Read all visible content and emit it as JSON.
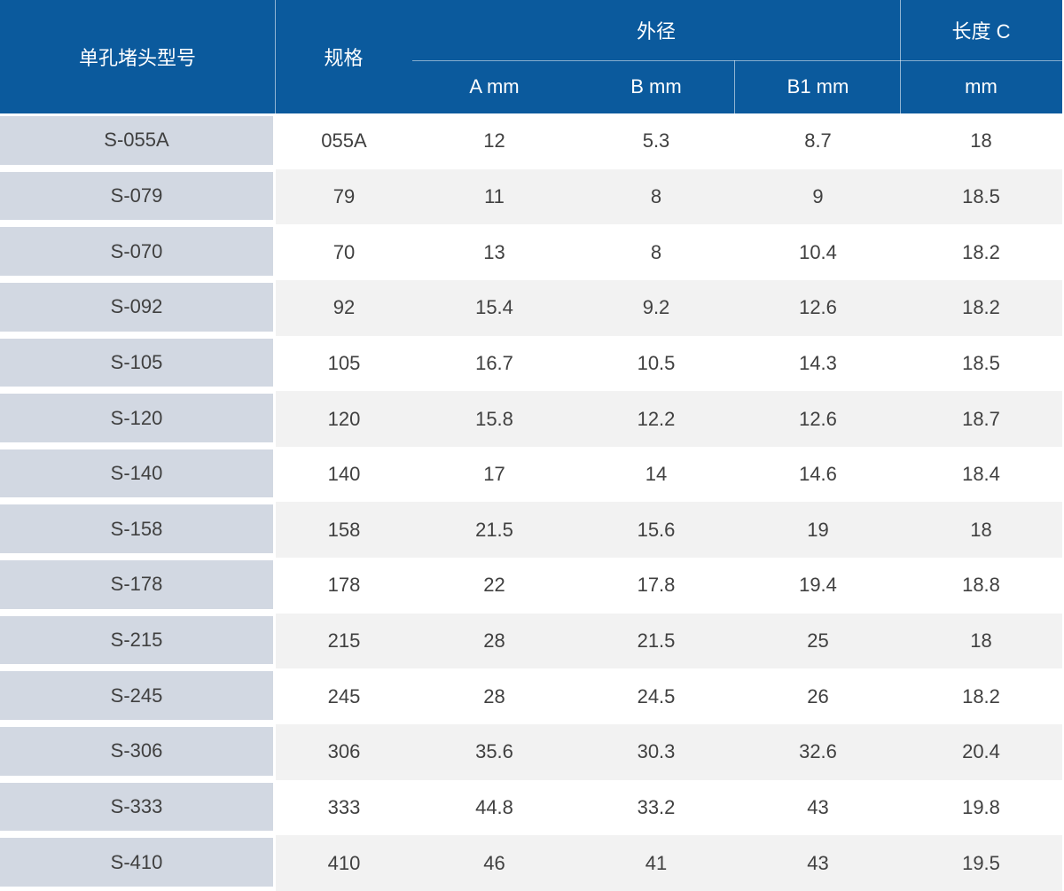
{
  "table": {
    "header": {
      "model": "单孔堵头型号",
      "spec": "规格",
      "outer_diameter_group": "外径",
      "sub_a": "A mm",
      "sub_b": "B mm",
      "sub_b1": "B1 mm",
      "length_c_line1": "长度 C",
      "length_c_line2": "mm"
    },
    "rows": [
      {
        "model": "S-055A",
        "spec": "055A",
        "a": "12",
        "b": "5.3",
        "b1": "8.7",
        "c": "18"
      },
      {
        "model": "S-079",
        "spec": "79",
        "a": "11",
        "b": "8",
        "b1": "9",
        "c": "18.5"
      },
      {
        "model": "S-070",
        "spec": "70",
        "a": "13",
        "b": "8",
        "b1": "10.4",
        "c": "18.2"
      },
      {
        "model": "S-092",
        "spec": "92",
        "a": "15.4",
        "b": "9.2",
        "b1": "12.6",
        "c": "18.2"
      },
      {
        "model": "S-105",
        "spec": "105",
        "a": "16.7",
        "b": "10.5",
        "b1": "14.3",
        "c": "18.5"
      },
      {
        "model": "S-120",
        "spec": "120",
        "a": "15.8",
        "b": "12.2",
        "b1": "12.6",
        "c": "18.7"
      },
      {
        "model": "S-140",
        "spec": "140",
        "a": "17",
        "b": "14",
        "b1": "14.6",
        "c": "18.4"
      },
      {
        "model": "S-158",
        "spec": "158",
        "a": "21.5",
        "b": "15.6",
        "b1": "19",
        "c": "18"
      },
      {
        "model": "S-178",
        "spec": "178",
        "a": "22",
        "b": "17.8",
        "b1": "19.4",
        "c": "18.8"
      },
      {
        "model": "S-215",
        "spec": "215",
        "a": "28",
        "b": "21.5",
        "b1": "25",
        "c": "18"
      },
      {
        "model": "S-245",
        "spec": "245",
        "a": "28",
        "b": "24.5",
        "b1": "26",
        "c": "18.2"
      },
      {
        "model": "S-306",
        "spec": "306",
        "a": "35.6",
        "b": "30.3",
        "b1": "32.6",
        "c": "20.4"
      },
      {
        "model": "S-333",
        "spec": "333",
        "a": "44.8",
        "b": "33.2",
        "b1": "43",
        "c": "19.8"
      },
      {
        "model": "S-410",
        "spec": "410",
        "a": "46",
        "b": "41",
        "b1": "43",
        "c": "19.5"
      }
    ],
    "colors": {
      "header_bg": "#0b5a9d",
      "header_text": "#ffffff",
      "model_cell_bg": "#d2d8e2",
      "row_even_bg": "#ffffff",
      "row_odd_bg": "#f2f2f2",
      "cell_text": "#404040"
    }
  },
  "chart_data": {
    "type": "table",
    "title": "",
    "columns": [
      "单孔堵头型号",
      "规格",
      "外径 A mm",
      "外径 B mm",
      "外径 B1 mm",
      "长度 C mm"
    ],
    "rows": [
      [
        "S-055A",
        "055A",
        12,
        5.3,
        8.7,
        18
      ],
      [
        "S-079",
        "79",
        11,
        8,
        9,
        18.5
      ],
      [
        "S-070",
        "70",
        13,
        8,
        10.4,
        18.2
      ],
      [
        "S-092",
        "92",
        15.4,
        9.2,
        12.6,
        18.2
      ],
      [
        "S-105",
        "105",
        16.7,
        10.5,
        14.3,
        18.5
      ],
      [
        "S-120",
        "120",
        15.8,
        12.2,
        12.6,
        18.7
      ],
      [
        "S-140",
        "140",
        17,
        14,
        14.6,
        18.4
      ],
      [
        "S-158",
        "158",
        21.5,
        15.6,
        19,
        18
      ],
      [
        "S-178",
        "178",
        22,
        17.8,
        19.4,
        18.8
      ],
      [
        "S-215",
        "215",
        28,
        21.5,
        25,
        18
      ],
      [
        "S-245",
        "245",
        28,
        24.5,
        26,
        18.2
      ],
      [
        "S-306",
        "306",
        35.6,
        30.3,
        32.6,
        20.4
      ],
      [
        "S-333",
        "333",
        44.8,
        33.2,
        43,
        19.8
      ],
      [
        "S-410",
        "410",
        46,
        41,
        43,
        19.5
      ]
    ]
  }
}
